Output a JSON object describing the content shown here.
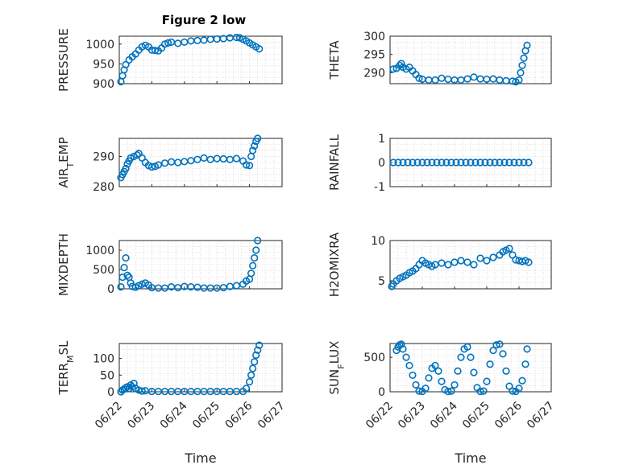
{
  "chart_data": {
    "title": "Figure 2 low",
    "type": "scatter",
    "marker": "circle-open",
    "series_color": "#0072BD",
    "grid": "minor-dotted",
    "x_tick_labels": [
      "06/22",
      "06/23",
      "06/24",
      "06/25",
      "06/26",
      "06/27"
    ],
    "xlabel": "Time",
    "panels": [
      {
        "ylabel": "PRESSURE",
        "ylabel_sub": "",
        "ylim": [
          900,
          1020
        ],
        "yticks": [
          "900",
          "950",
          "1000"
        ],
        "yvals": [
          900,
          950,
          1000
        ],
        "points": [
          [
            0.05,
            905
          ],
          [
            0.1,
            920
          ],
          [
            0.15,
            935
          ],
          [
            0.2,
            948
          ],
          [
            0.3,
            960
          ],
          [
            0.4,
            968
          ],
          [
            0.5,
            975
          ],
          [
            0.6,
            985
          ],
          [
            0.7,
            993
          ],
          [
            0.8,
            997
          ],
          [
            0.9,
            993
          ],
          [
            1.0,
            985
          ],
          [
            1.1,
            984
          ],
          [
            1.2,
            983
          ],
          [
            1.3,
            990
          ],
          [
            1.4,
            1000
          ],
          [
            1.5,
            1003
          ],
          [
            1.6,
            1005
          ],
          [
            1.8,
            1002
          ],
          [
            2.0,
            1005
          ],
          [
            2.2,
            1008
          ],
          [
            2.4,
            1009
          ],
          [
            2.6,
            1010
          ],
          [
            2.8,
            1012
          ],
          [
            3.0,
            1013
          ],
          [
            3.2,
            1014
          ],
          [
            3.4,
            1016
          ],
          [
            3.6,
            1017
          ],
          [
            3.7,
            1016
          ],
          [
            3.8,
            1012
          ],
          [
            3.9,
            1008
          ],
          [
            4.0,
            1003
          ],
          [
            4.1,
            998
          ],
          [
            4.2,
            993
          ],
          [
            4.3,
            988
          ]
        ]
      },
      {
        "ylabel": "THETA",
        "ylabel_sub": "",
        "ylim": [
          287,
          300
        ],
        "yticks": [
          "290",
          "295",
          "300"
        ],
        "yvals": [
          290,
          295,
          300
        ],
        "points": [
          [
            0.1,
            291
          ],
          [
            0.2,
            291.2
          ],
          [
            0.3,
            292
          ],
          [
            0.35,
            292.5
          ],
          [
            0.4,
            291.5
          ],
          [
            0.5,
            291
          ],
          [
            0.6,
            291.5
          ],
          [
            0.7,
            290.5
          ],
          [
            0.8,
            289.5
          ],
          [
            0.9,
            288.5
          ],
          [
            1.0,
            288.2
          ],
          [
            1.2,
            288.0
          ],
          [
            1.4,
            288.0
          ],
          [
            1.6,
            288.5
          ],
          [
            1.8,
            288.2
          ],
          [
            2.0,
            288.0
          ],
          [
            2.2,
            288.0
          ],
          [
            2.4,
            288.3
          ],
          [
            2.6,
            288.8
          ],
          [
            2.8,
            288.3
          ],
          [
            3.0,
            288.2
          ],
          [
            3.2,
            288.3
          ],
          [
            3.4,
            288.0
          ],
          [
            3.6,
            287.8
          ],
          [
            3.8,
            287.7
          ],
          [
            3.9,
            287.5
          ],
          [
            4.0,
            288.0
          ],
          [
            4.05,
            290
          ],
          [
            4.1,
            292
          ],
          [
            4.15,
            294
          ],
          [
            4.2,
            296
          ],
          [
            4.25,
            297.5
          ]
        ]
      },
      {
        "ylabel": "AIR",
        "ylabel_sub": "T",
        "ylabel_tail": "EMP",
        "ylim": [
          280,
          296
        ],
        "yticks": [
          "280",
          "290"
        ],
        "yvals": [
          280,
          290
        ],
        "points": [
          [
            0.05,
            283
          ],
          [
            0.1,
            284
          ],
          [
            0.15,
            285
          ],
          [
            0.2,
            286
          ],
          [
            0.25,
            287.5
          ],
          [
            0.3,
            288.5
          ],
          [
            0.35,
            289.5
          ],
          [
            0.45,
            290
          ],
          [
            0.55,
            290.5
          ],
          [
            0.6,
            291
          ],
          [
            0.7,
            289.5
          ],
          [
            0.8,
            288
          ],
          [
            0.9,
            287
          ],
          [
            1.0,
            286.5
          ],
          [
            1.1,
            286.7
          ],
          [
            1.2,
            287.2
          ],
          [
            1.4,
            287.8
          ],
          [
            1.6,
            288.2
          ],
          [
            1.8,
            288.0
          ],
          [
            2.0,
            288.3
          ],
          [
            2.2,
            288.6
          ],
          [
            2.4,
            289.0
          ],
          [
            2.6,
            289.5
          ],
          [
            2.8,
            289.0
          ],
          [
            3.0,
            289.3
          ],
          [
            3.2,
            289.2
          ],
          [
            3.4,
            289.0
          ],
          [
            3.6,
            289.3
          ],
          [
            3.8,
            288.5
          ],
          [
            3.9,
            287.2
          ],
          [
            4.0,
            287.0
          ],
          [
            4.05,
            290
          ],
          [
            4.1,
            292
          ],
          [
            4.15,
            293.5
          ],
          [
            4.2,
            295
          ],
          [
            4.25,
            296
          ]
        ]
      },
      {
        "ylabel": "RAINFALL",
        "ylabel_sub": "",
        "ylim": [
          -1,
          1
        ],
        "yticks": [
          "-1",
          "0",
          "1"
        ],
        "yvals": [
          -1,
          0,
          1
        ],
        "points": [
          [
            0.1,
            0
          ],
          [
            0.25,
            0
          ],
          [
            0.4,
            0
          ],
          [
            0.55,
            0
          ],
          [
            0.7,
            0
          ],
          [
            0.85,
            0
          ],
          [
            1.0,
            0
          ],
          [
            1.15,
            0
          ],
          [
            1.3,
            0
          ],
          [
            1.45,
            0
          ],
          [
            1.6,
            0
          ],
          [
            1.75,
            0
          ],
          [
            1.9,
            0
          ],
          [
            2.05,
            0
          ],
          [
            2.2,
            0
          ],
          [
            2.35,
            0
          ],
          [
            2.5,
            0
          ],
          [
            2.65,
            0
          ],
          [
            2.8,
            0
          ],
          [
            2.95,
            0
          ],
          [
            3.1,
            0
          ],
          [
            3.25,
            0
          ],
          [
            3.4,
            0
          ],
          [
            3.55,
            0
          ],
          [
            3.7,
            0
          ],
          [
            3.85,
            0
          ],
          [
            4.0,
            0
          ],
          [
            4.15,
            0
          ],
          [
            4.3,
            0
          ]
        ]
      },
      {
        "ylabel": "MIXDEPTH",
        "ylabel_sub": "",
        "ylim": [
          0,
          1250
        ],
        "yticks": [
          "0",
          "500",
          "1000"
        ],
        "yvals": [
          0,
          500,
          1000
        ],
        "points": [
          [
            0.05,
            50
          ],
          [
            0.1,
            300
          ],
          [
            0.15,
            550
          ],
          [
            0.2,
            800
          ],
          [
            0.25,
            350
          ],
          [
            0.3,
            300
          ],
          [
            0.35,
            150
          ],
          [
            0.4,
            60
          ],
          [
            0.5,
            40
          ],
          [
            0.6,
            80
          ],
          [
            0.7,
            120
          ],
          [
            0.8,
            150
          ],
          [
            0.9,
            100
          ],
          [
            1.0,
            30
          ],
          [
            1.2,
            20
          ],
          [
            1.4,
            20
          ],
          [
            1.6,
            50
          ],
          [
            1.8,
            30
          ],
          [
            2.0,
            60
          ],
          [
            2.2,
            50
          ],
          [
            2.4,
            40
          ],
          [
            2.6,
            20
          ],
          [
            2.8,
            20
          ],
          [
            3.0,
            20
          ],
          [
            3.2,
            30
          ],
          [
            3.4,
            60
          ],
          [
            3.6,
            80
          ],
          [
            3.8,
            120
          ],
          [
            3.9,
            200
          ],
          [
            4.0,
            250
          ],
          [
            4.05,
            400
          ],
          [
            4.1,
            600
          ],
          [
            4.15,
            800
          ],
          [
            4.2,
            1000
          ],
          [
            4.25,
            1250
          ]
        ]
      },
      {
        "ylabel": "H2OMIXRA",
        "ylabel_sub": "",
        "ylim": [
          4,
          10
        ],
        "yticks": [
          "5",
          "10"
        ],
        "yvals": [
          5,
          10
        ],
        "points": [
          [
            0.05,
            4.3
          ],
          [
            0.1,
            4.6
          ],
          [
            0.2,
            5.0
          ],
          [
            0.3,
            5.3
          ],
          [
            0.4,
            5.5
          ],
          [
            0.5,
            5.7
          ],
          [
            0.6,
            6.0
          ],
          [
            0.7,
            6.2
          ],
          [
            0.8,
            6.5
          ],
          [
            0.9,
            7.0
          ],
          [
            1.0,
            7.5
          ],
          [
            1.1,
            7.2
          ],
          [
            1.2,
            7.0
          ],
          [
            1.3,
            6.8
          ],
          [
            1.4,
            7.0
          ],
          [
            1.6,
            7.2
          ],
          [
            1.8,
            7.0
          ],
          [
            2.0,
            7.3
          ],
          [
            2.2,
            7.5
          ],
          [
            2.4,
            7.3
          ],
          [
            2.6,
            7.0
          ],
          [
            2.8,
            7.8
          ],
          [
            3.0,
            7.5
          ],
          [
            3.2,
            7.9
          ],
          [
            3.4,
            8.2
          ],
          [
            3.5,
            8.6
          ],
          [
            3.6,
            8.8
          ],
          [
            3.7,
            9.0
          ],
          [
            3.8,
            8.2
          ],
          [
            3.9,
            7.6
          ],
          [
            4.0,
            7.5
          ],
          [
            4.1,
            7.4
          ],
          [
            4.2,
            7.5
          ],
          [
            4.3,
            7.3
          ]
        ]
      },
      {
        "ylabel": "TERR",
        "ylabel_sub": "M",
        "ylabel_tail": "SL",
        "ylim": [
          0,
          145
        ],
        "yticks": [
          "0",
          "50",
          "100"
        ],
        "yvals": [
          0,
          50,
          100
        ],
        "points": [
          [
            0.05,
            0
          ],
          [
            0.1,
            5
          ],
          [
            0.15,
            8
          ],
          [
            0.2,
            12
          ],
          [
            0.25,
            15
          ],
          [
            0.3,
            10
          ],
          [
            0.35,
            20
          ],
          [
            0.4,
            15
          ],
          [
            0.45,
            25
          ],
          [
            0.5,
            10
          ],
          [
            0.6,
            5
          ],
          [
            0.7,
            2
          ],
          [
            0.8,
            3
          ],
          [
            1.0,
            1
          ],
          [
            1.2,
            1
          ],
          [
            1.4,
            1
          ],
          [
            1.6,
            1
          ],
          [
            1.8,
            1
          ],
          [
            2.0,
            1
          ],
          [
            2.2,
            1
          ],
          [
            2.4,
            1
          ],
          [
            2.6,
            1
          ],
          [
            2.8,
            1
          ],
          [
            3.0,
            1
          ],
          [
            3.2,
            1
          ],
          [
            3.4,
            1
          ],
          [
            3.6,
            1
          ],
          [
            3.8,
            1
          ],
          [
            3.9,
            10
          ],
          [
            4.0,
            30
          ],
          [
            4.05,
            50
          ],
          [
            4.1,
            70
          ],
          [
            4.15,
            90
          ],
          [
            4.2,
            110
          ],
          [
            4.25,
            125
          ],
          [
            4.3,
            140
          ]
        ]
      },
      {
        "ylabel": "SUN",
        "ylabel_sub": "F",
        "ylabel_tail": "LUX",
        "ylim": [
          0,
          700
        ],
        "yticks": [
          "0",
          "500"
        ],
        "yvals": [
          0,
          500
        ],
        "points": [
          [
            0.2,
            600
          ],
          [
            0.25,
            650
          ],
          [
            0.3,
            680
          ],
          [
            0.35,
            690
          ],
          [
            0.4,
            620
          ],
          [
            0.5,
            500
          ],
          [
            0.6,
            380
          ],
          [
            0.7,
            240
          ],
          [
            0.8,
            100
          ],
          [
            0.9,
            10
          ],
          [
            1.0,
            5
          ],
          [
            1.1,
            50
          ],
          [
            1.2,
            200
          ],
          [
            1.3,
            340
          ],
          [
            1.4,
            380
          ],
          [
            1.5,
            300
          ],
          [
            1.6,
            150
          ],
          [
            1.7,
            30
          ],
          [
            1.8,
            5
          ],
          [
            1.9,
            10
          ],
          [
            2.0,
            100
          ],
          [
            2.1,
            300
          ],
          [
            2.2,
            500
          ],
          [
            2.3,
            620
          ],
          [
            2.4,
            650
          ],
          [
            2.5,
            500
          ],
          [
            2.6,
            280
          ],
          [
            2.7,
            60
          ],
          [
            2.8,
            5
          ],
          [
            2.9,
            10
          ],
          [
            3.0,
            150
          ],
          [
            3.1,
            400
          ],
          [
            3.2,
            600
          ],
          [
            3.3,
            680
          ],
          [
            3.4,
            690
          ],
          [
            3.5,
            550
          ],
          [
            3.6,
            300
          ],
          [
            3.7,
            80
          ],
          [
            3.8,
            10
          ],
          [
            3.9,
            5
          ],
          [
            4.0,
            50
          ],
          [
            4.1,
            160
          ],
          [
            4.2,
            400
          ],
          [
            4.25,
            620
          ]
        ]
      }
    ]
  }
}
